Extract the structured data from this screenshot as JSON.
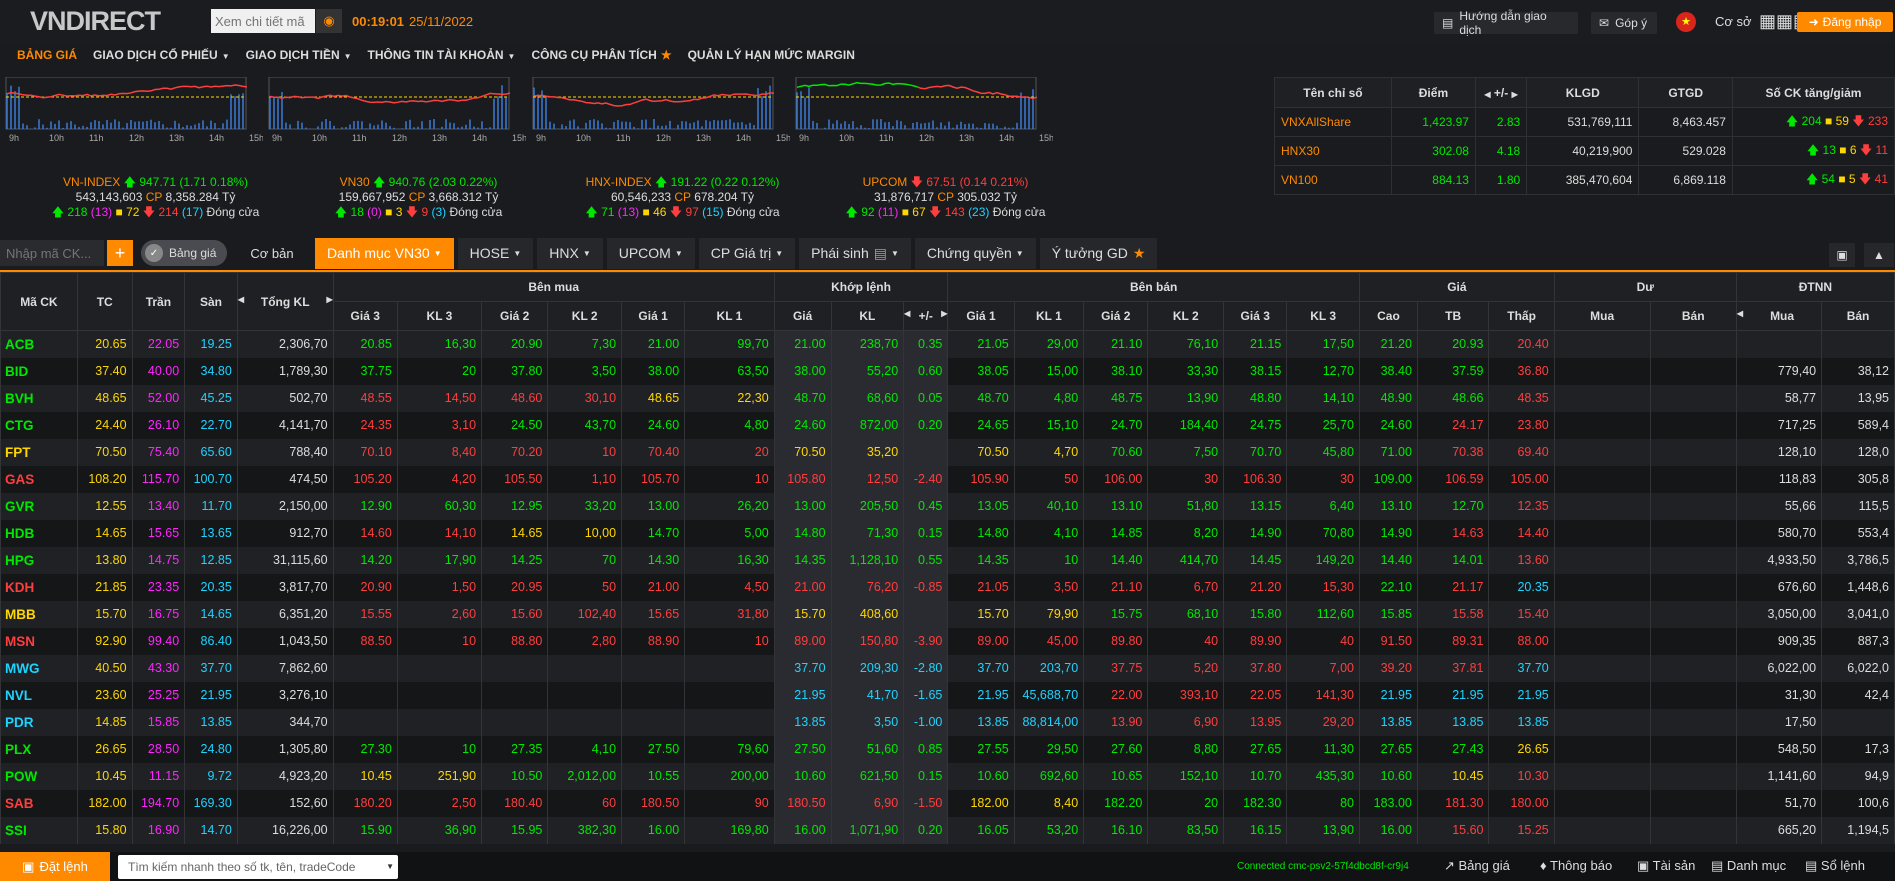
{
  "header": {
    "logo": "VNDIRECT",
    "search_placeholder": "Xem chi tiết mã",
    "clock": "00:19:01",
    "date": "25/11/2022",
    "guide": "Hướng dẫn giao dịch",
    "feedback": "Góp ý",
    "flag": "★",
    "coso": "Cơ sở",
    "login": "Đăng nhập"
  },
  "nav": [
    "BẢNG GIÁ",
    "GIAO DỊCH CỔ PHIẾU",
    "GIAO DỊCH TIỀN",
    "THÔNG TIN TÀI KHOẢN",
    "CÔNG CỤ PHÂN TÍCH",
    "QUẢN LÝ HẠN MỨC MARGIN"
  ],
  "chart_data": [
    {
      "type": "line",
      "title": "VN-INDEX",
      "change": "947.71 (1.71 0.18%)",
      "vol": "543,143,603",
      "cp": "8,358.284 Tỷ",
      "stats": {
        "up": "218",
        "ceil": "(13)",
        "ref": "72",
        "down": "214",
        "floor": "(17)",
        "status": "Đóng cửa"
      },
      "x": [
        "9h",
        "10h",
        "11h",
        "12h",
        "13h",
        "14h",
        "15h"
      ],
      "direction": "up"
    },
    {
      "type": "line",
      "title": "VN30",
      "change": "940.76 (2.03 0.22%)",
      "vol": "159,667,952",
      "cp": "3,668.312 Tỷ",
      "stats": {
        "up": "18",
        "ceil": "(0)",
        "ref": "3",
        "down": "9",
        "floor": "(3)",
        "status": "Đóng cửa"
      },
      "x": [
        "9h",
        "10h",
        "11h",
        "12h",
        "13h",
        "14h",
        "15h"
      ],
      "direction": "up"
    },
    {
      "type": "line",
      "title": "HNX-INDEX",
      "change": "191.22 (0.22 0.12%)",
      "vol": "60,546,233",
      "cp": "678.204 Tỷ",
      "stats": {
        "up": "71",
        "ceil": "(13)",
        "ref": "46",
        "down": "97",
        "floor": "(15)",
        "status": "Đóng cửa"
      },
      "x": [
        "9h",
        "10h",
        "11h",
        "12h",
        "13h",
        "14h",
        "15h"
      ],
      "direction": "up"
    },
    {
      "type": "line",
      "title": "UPCOM",
      "change": "67.51 (0.14 0.21%)",
      "vol": "31,876,717",
      "cp": "305.032 Tỷ",
      "stats": {
        "up": "92",
        "ceil": "(11)",
        "ref": "67",
        "down": "143",
        "floor": "(23)",
        "status": "Đóng cửa"
      },
      "x": [
        "9h",
        "10h",
        "11h",
        "12h",
        "13h",
        "14h",
        "15h"
      ],
      "direction": "down"
    }
  ],
  "index_table": {
    "headers": [
      "Tên chỉ số",
      "Điểm",
      "+/-",
      "KLGD",
      "GTGD",
      "Số CK tăng/giảm"
    ],
    "rows": [
      {
        "name": "VNXAllShare",
        "point": "1,423.97",
        "chg": "2.83",
        "klgd": "531,769,111",
        "gtgd": "8,463.457",
        "up": "204",
        "ref": "59",
        "down": "233"
      },
      {
        "name": "HNX30",
        "point": "302.08",
        "chg": "4.18",
        "klgd": "40,219,900",
        "gtgd": "529.028",
        "up": "13",
        "ref": "6",
        "down": "11"
      },
      {
        "name": "VN100",
        "point": "884.13",
        "chg": "1.80",
        "klgd": "385,470,604",
        "gtgd": "6,869.118",
        "up": "54",
        "ref": "5",
        "down": "41"
      }
    ]
  },
  "toolbar": {
    "input_placeholder": "Nhập mã CK...",
    "add": "+",
    "toggle": "Bảng giá",
    "coban": "Cơ bản",
    "tabs": [
      "Danh mục VN30",
      "HOSE",
      "HNX",
      "UPCOM",
      "CP Giá trị",
      "Phái sinh",
      "Chứng quyền",
      "Ý tưởng GD"
    ]
  },
  "board": {
    "groups": [
      "Mã CK",
      "TC",
      "Trần",
      "Sàn",
      "Tổng KL",
      "Bên mua",
      "Khớp lệnh",
      "Bên bán",
      "Giá",
      "Dư",
      "ĐTNN"
    ],
    "subs": [
      "Giá 3",
      "KL 3",
      "Giá 2",
      "KL 2",
      "Giá 1",
      "KL 1",
      "Giá",
      "KL",
      "+/-",
      "Giá 1",
      "KL 1",
      "Giá 2",
      "KL 2",
      "Giá 3",
      "KL 3",
      "Cao",
      "TB",
      "Thấp",
      "Mua",
      "Bán",
      "Mua",
      "Bán"
    ],
    "rows": [
      [
        "ACB",
        "20.65",
        "22.05",
        "19.25",
        "2,306,70",
        "20.85",
        "16,30",
        "20.90",
        "7,30",
        "21.00",
        "99,70",
        "21.00",
        "238,70",
        "0.35",
        "21.05",
        "29,00",
        "21.10",
        "76,10",
        "21.15",
        "17,50",
        "21.20",
        "20.93",
        "20.40",
        "",
        "",
        "",
        ""
      ],
      [
        "BID",
        "37.40",
        "40.00",
        "34.80",
        "1,789,30",
        "37.75",
        "20",
        "37.80",
        "3,50",
        "38.00",
        "63,50",
        "38.00",
        "55,20",
        "0.60",
        "38.05",
        "15,00",
        "38.10",
        "33,30",
        "38.15",
        "12,70",
        "38.40",
        "37.59",
        "36.80",
        "",
        "",
        "779,40",
        "38,12"
      ],
      [
        "BVH",
        "48.65",
        "52.00",
        "45.25",
        "502,70",
        "48.55",
        "14,50",
        "48.60",
        "30,10",
        "48.65",
        "22,30",
        "48.70",
        "68,60",
        "0.05",
        "48.70",
        "4,80",
        "48.75",
        "13,90",
        "48.80",
        "14,10",
        "48.90",
        "48.66",
        "48.35",
        "",
        "",
        "58,77",
        "13,95"
      ],
      [
        "CTG",
        "24.40",
        "26.10",
        "22.70",
        "4,141,70",
        "24.35",
        "3,10",
        "24.50",
        "43,70",
        "24.60",
        "4,80",
        "24.60",
        "872,00",
        "0.20",
        "24.65",
        "15,10",
        "24.70",
        "184,40",
        "24.75",
        "25,70",
        "24.60",
        "24.17",
        "23.80",
        "",
        "",
        "717,25",
        "589,4"
      ],
      [
        "FPT",
        "70.50",
        "75.40",
        "65.60",
        "788,40",
        "70.10",
        "8,40",
        "70.20",
        "10",
        "70.40",
        "20",
        "70.50",
        "35,20",
        "",
        "70.50",
        "4,70",
        "70.60",
        "7,50",
        "70.70",
        "45,80",
        "71.00",
        "70.38",
        "69.40",
        "",
        "",
        "128,10",
        "128,0"
      ],
      [
        "GAS",
        "108.20",
        "115.70",
        "100.70",
        "474,50",
        "105.20",
        "4,20",
        "105.50",
        "1,10",
        "105.70",
        "10",
        "105.80",
        "12,50",
        "-2.40",
        "105.90",
        "50",
        "106.00",
        "30",
        "106.30",
        "30",
        "109.00",
        "106.59",
        "105.00",
        "",
        "",
        "118,83",
        "305,8"
      ],
      [
        "GVR",
        "12.55",
        "13.40",
        "11.70",
        "2,150,00",
        "12.90",
        "60,30",
        "12.95",
        "33,20",
        "13.00",
        "26,20",
        "13.00",
        "205,50",
        "0.45",
        "13.05",
        "40,10",
        "13.10",
        "51,80",
        "13.15",
        "6,40",
        "13.10",
        "12.70",
        "12.35",
        "",
        "",
        "55,66",
        "115,5"
      ],
      [
        "HDB",
        "14.65",
        "15.65",
        "13.65",
        "912,70",
        "14.60",
        "14,10",
        "14.65",
        "10,00",
        "14.70",
        "5,00",
        "14.80",
        "71,30",
        "0.15",
        "14.80",
        "4,10",
        "14.85",
        "8,20",
        "14.90",
        "70,80",
        "14.90",
        "14.63",
        "14.40",
        "",
        "",
        "580,70",
        "553,4"
      ],
      [
        "HPG",
        "13.80",
        "14.75",
        "12.85",
        "31,115,60",
        "14.20",
        "17,90",
        "14.25",
        "70",
        "14.30",
        "16,30",
        "14.35",
        "1,128,10",
        "0.55",
        "14.35",
        "10",
        "14.40",
        "414,70",
        "14.45",
        "149,20",
        "14.40",
        "14.01",
        "13.60",
        "",
        "",
        "4,933,50",
        "3,786,5"
      ],
      [
        "KDH",
        "21.85",
        "23.35",
        "20.35",
        "3,817,70",
        "20.90",
        "1,50",
        "20.95",
        "50",
        "21.00",
        "4,50",
        "21.00",
        "76,20",
        "-0.85",
        "21.05",
        "3,50",
        "21.10",
        "6,70",
        "21.20",
        "15,30",
        "22.10",
        "21.17",
        "20.35",
        "",
        "",
        "676,60",
        "1,448,6"
      ],
      [
        "MBB",
        "15.70",
        "16.75",
        "14.65",
        "6,351,20",
        "15.55",
        "2,60",
        "15.60",
        "102,40",
        "15.65",
        "31,80",
        "15.70",
        "408,60",
        "",
        "15.70",
        "79,90",
        "15.75",
        "68,10",
        "15.80",
        "112,60",
        "15.85",
        "15.58",
        "15.40",
        "",
        "",
        "3,050,00",
        "3,041,0"
      ],
      [
        "MSN",
        "92.90",
        "99.40",
        "86.40",
        "1,043,50",
        "88.50",
        "10",
        "88.80",
        "2,80",
        "88.90",
        "10",
        "89.00",
        "150,80",
        "-3.90",
        "89.00",
        "45,00",
        "89.80",
        "40",
        "89.90",
        "40",
        "91.50",
        "89.31",
        "88.00",
        "",
        "",
        "909,35",
        "887,3"
      ],
      [
        "MWG",
        "40.50",
        "43.30",
        "37.70",
        "7,862,60",
        "",
        "",
        "",
        "",
        "",
        "",
        "37.70",
        "209,30",
        "-2.80",
        "37.70",
        "203,70",
        "37.75",
        "5,20",
        "37.80",
        "7,00",
        "39.20",
        "37.81",
        "37.70",
        "",
        "",
        "6,022,00",
        "6,022,0"
      ],
      [
        "NVL",
        "23.60",
        "25.25",
        "21.95",
        "3,276,10",
        "",
        "",
        "",
        "",
        "",
        "",
        "21.95",
        "41,70",
        "-1.65",
        "21.95",
        "45,688,70",
        "22.00",
        "393,10",
        "22.05",
        "141,30",
        "21.95",
        "21.95",
        "21.95",
        "",
        "",
        "31,30",
        "42,4"
      ],
      [
        "PDR",
        "14.85",
        "15.85",
        "13.85",
        "344,70",
        "",
        "",
        "",
        "",
        "",
        "",
        "13.85",
        "3,50",
        "-1.00",
        "13.85",
        "88,814,00",
        "13.90",
        "6,90",
        "13.95",
        "29,20",
        "13.85",
        "13.85",
        "13.85",
        "",
        "",
        "17,50",
        ""
      ],
      [
        "PLX",
        "26.65",
        "28.50",
        "24.80",
        "1,305,80",
        "27.30",
        "10",
        "27.35",
        "4,10",
        "27.50",
        "79,60",
        "27.50",
        "51,60",
        "0.85",
        "27.55",
        "29,50",
        "27.60",
        "8,80",
        "27.65",
        "11,30",
        "27.65",
        "27.43",
        "26.65",
        "",
        "",
        "548,50",
        "17,3"
      ],
      [
        "POW",
        "10.45",
        "11.15",
        "9.72",
        "4,923,20",
        "10.45",
        "251,90",
        "10.50",
        "2,012,00",
        "10.55",
        "200,00",
        "10.60",
        "621,50",
        "0.15",
        "10.60",
        "692,60",
        "10.65",
        "152,10",
        "10.70",
        "435,30",
        "10.60",
        "10.45",
        "10.30",
        "",
        "",
        "1,141,60",
        "94,9"
      ],
      [
        "SAB",
        "182.00",
        "194.70",
        "169.30",
        "152,60",
        "180.20",
        "2,50",
        "180.40",
        "60",
        "180.50",
        "90",
        "180.50",
        "6,90",
        "-1.50",
        "182.00",
        "8,40",
        "182.20",
        "20",
        "182.30",
        "80",
        "183.00",
        "181.30",
        "180.00",
        "",
        "",
        "51,70",
        "100,6"
      ],
      [
        "SSI",
        "15.80",
        "16.90",
        "14.70",
        "16,226,00",
        "15.90",
        "36,90",
        "15.95",
        "382,30",
        "16.00",
        "169,80",
        "16.00",
        "1,071,90",
        "0.20",
        "16.05",
        "53,20",
        "16.10",
        "83,50",
        "16.15",
        "13,90",
        "16.00",
        "15.60",
        "15.25",
        "",
        "",
        "665,20",
        "1,194,5"
      ]
    ]
  },
  "bottom": {
    "order": "Đặt lệnh",
    "search_placeholder": "Tìm kiếm nhanh theo số tk, tên, tradeCode",
    "connected": "Connected cmc-psv2-57f4dbcd8f-cr9j4",
    "nav": [
      "Bảng giá",
      "Thông báo",
      "Tài sản",
      "Danh mục",
      "Sổ lệnh"
    ]
  },
  "colors": {
    "up": "#00e800",
    "down": "#ff3e3e",
    "ref": "#ffd700",
    "ceil": "#ff25ff",
    "floor": "#1fd3ff",
    "accent": "#ff8a00"
  }
}
